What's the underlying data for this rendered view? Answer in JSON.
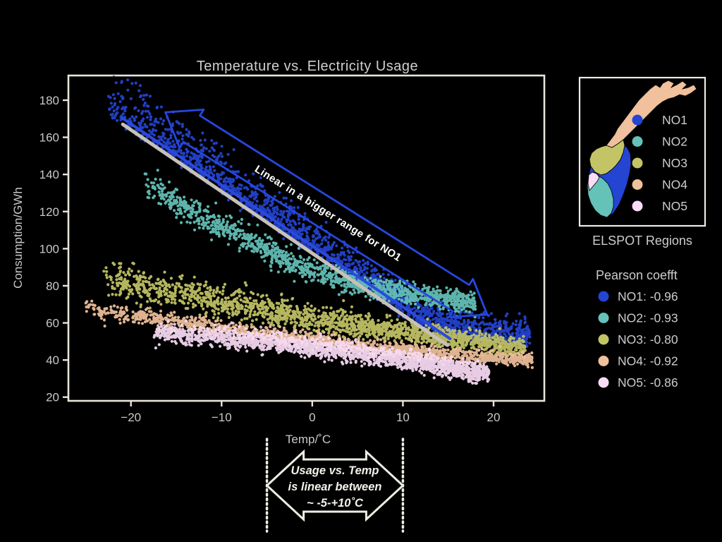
{
  "figure": {
    "background": "#000000",
    "frame_color": "#e9e5da",
    "text_color": "#cfcfcf"
  },
  "chart_data": {
    "type": "scatter",
    "title": "Temperature vs. Electricity Usage",
    "xlabel": "Temp/˚C",
    "ylabel": "Consumption/GWh",
    "xlim": [
      -26.9,
      25.6
    ],
    "ylim": [
      18,
      193.3
    ],
    "grid": false,
    "x_tick_values": [
      -20,
      -10,
      0,
      10,
      20
    ],
    "x_tick_labels": [
      "−20",
      "−10",
      "0",
      "10",
      "20"
    ],
    "y_tick_values": [
      20,
      40,
      60,
      80,
      100,
      120,
      140,
      160,
      180
    ],
    "y_tick_labels": [
      "20",
      "40",
      "60",
      "80",
      "100",
      "120",
      "140",
      "160",
      "180"
    ],
    "series": [
      {
        "name": "NO1",
        "color": "#2444d2",
        "pearson": -0.96,
        "count": 1800,
        "skew": "above",
        "spread": [
          13,
          6
        ],
        "trend": [
          [
            -22.5,
            172
          ],
          [
            -18,
            158
          ],
          [
            -14,
            145
          ],
          [
            -10,
            132
          ],
          [
            -6,
            118
          ],
          [
            -2,
            105
          ],
          [
            0,
            99
          ],
          [
            3,
            89
          ],
          [
            6,
            79
          ],
          [
            9,
            69
          ],
          [
            12,
            60
          ],
          [
            15,
            55
          ],
          [
            18,
            52
          ],
          [
            21,
            51
          ],
          [
            24,
            50
          ]
        ]
      },
      {
        "name": "NO2",
        "color": "#64c2b9",
        "pearson": -0.93,
        "count": 1300,
        "skew": "sym",
        "spread": [
          8,
          5
        ],
        "trend": [
          [
            -18.5,
            136
          ],
          [
            -14,
            122
          ],
          [
            -10,
            112
          ],
          [
            -6,
            102
          ],
          [
            -2,
            92
          ],
          [
            0,
            88
          ],
          [
            3,
            83
          ],
          [
            6,
            79
          ],
          [
            9,
            77
          ],
          [
            12,
            75
          ],
          [
            14,
            73
          ],
          [
            18,
            71
          ]
        ]
      },
      {
        "name": "NO3",
        "color": "#c3c465",
        "pearson": -0.8,
        "count": 1800,
        "skew": "sym",
        "spread": [
          9,
          5
        ],
        "trend": [
          [
            -23,
            84
          ],
          [
            -18,
            79
          ],
          [
            -14,
            76
          ],
          [
            -10,
            72
          ],
          [
            -6,
            68
          ],
          [
            -2,
            64
          ],
          [
            0,
            62
          ],
          [
            3,
            60
          ],
          [
            6,
            58
          ],
          [
            9,
            56
          ],
          [
            12,
            54
          ],
          [
            15,
            52
          ],
          [
            18,
            50
          ],
          [
            21,
            48
          ],
          [
            23.5,
            47
          ]
        ]
      },
      {
        "name": "NO4",
        "color": "#f0c19c",
        "pearson": -0.92,
        "count": 1400,
        "skew": "sym",
        "spread": [
          4.5,
          3.5
        ],
        "trend": [
          [
            -25,
            68
          ],
          [
            -20,
            64
          ],
          [
            -15,
            61
          ],
          [
            -10,
            57
          ],
          [
            -5,
            54
          ],
          [
            0,
            51
          ],
          [
            5,
            48
          ],
          [
            10,
            45
          ],
          [
            15,
            43
          ],
          [
            20,
            41
          ],
          [
            24.3,
            40
          ]
        ]
      },
      {
        "name": "NO5",
        "color": "#f9dcf5",
        "pearson": -0.86,
        "count": 2000,
        "skew": "sym",
        "spread": [
          5,
          4.8
        ],
        "trend": [
          [
            -17.5,
            55
          ],
          [
            -12,
            53
          ],
          [
            -8,
            51
          ],
          [
            -5,
            50
          ],
          [
            0,
            47
          ],
          [
            5,
            44
          ],
          [
            10,
            40
          ],
          [
            14,
            37
          ],
          [
            17,
            34
          ],
          [
            19.5,
            33
          ]
        ]
      }
    ],
    "fit_lines": [
      {
        "name": "NO1-fit-shadow",
        "color": "#c7c1b7",
        "width": 5,
        "from": [
          -20.9,
          167
        ],
        "to": [
          14.9,
          48
        ]
      },
      {
        "name": "NO1-fit-highlight",
        "color": "#2b49dc",
        "width": 4,
        "from": [
          -21,
          170.5
        ],
        "to": [
          15.2,
          51.5
        ]
      }
    ],
    "annotation_arrow": {
      "text": "Linear in a bigger range for NO1",
      "from": [
        -16.2,
        173.5
      ],
      "to": [
        19.3,
        64.5
      ],
      "color": "#2647dd"
    },
    "linear_range": {
      "x_start": -5,
      "x_end": 10,
      "color": "#efece3",
      "lines": [
        "Usage vs. Temp",
        "is linear between",
        "~ -5-+10˚C"
      ]
    }
  },
  "map_inset": {
    "caption": "ELSPOT Regions",
    "items": [
      {
        "label": "NO1",
        "color": "#2444d2"
      },
      {
        "label": "NO2",
        "color": "#64c2b9"
      },
      {
        "label": "NO3",
        "color": "#c3c465"
      },
      {
        "label": "NO4",
        "color": "#f0c19c"
      },
      {
        "label": "NO5",
        "color": "#f9dcf5"
      }
    ]
  },
  "pearson_legend": {
    "title": "Pearson coefft",
    "items": [
      {
        "label": "NO1: -0.96",
        "color": "#2444d2"
      },
      {
        "label": "NO2: -0.93",
        "color": "#64c2b9"
      },
      {
        "label": "NO3: -0.80",
        "color": "#c3c465"
      },
      {
        "label": "NO4: -0.92",
        "color": "#f0c19c"
      },
      {
        "label": "NO5: -0.86",
        "color": "#f9dcf5"
      }
    ]
  }
}
